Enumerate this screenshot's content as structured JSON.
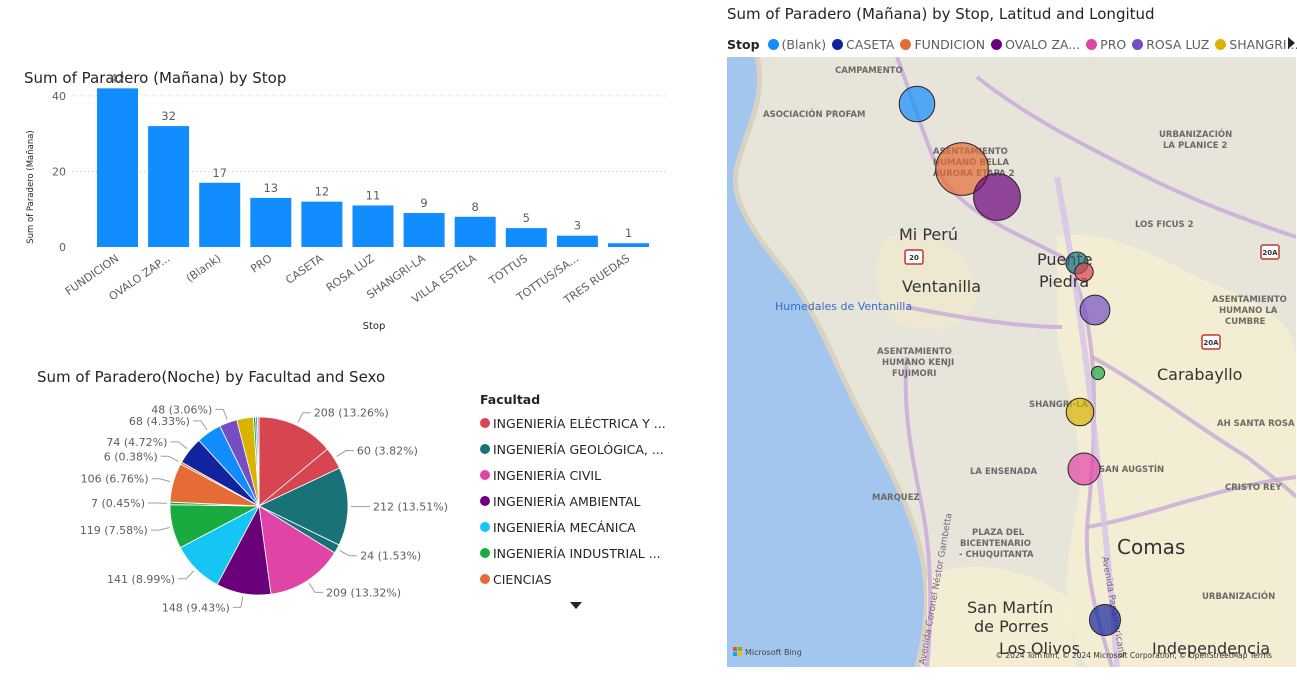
{
  "bar_chart": {
    "title": "Sum of Paradero (Mañana) by Stop"
  },
  "pie_chart": {
    "title": "Sum of Paradero(Noche) by Facultad and Sexo",
    "legend_title": "Facultad",
    "legend_items": [
      {
        "label": "INGENIERÍA ELÉCTRICA Y ...",
        "color": "#D64550"
      },
      {
        "label": "INGENIERÍA GEOLÓGICA, ...",
        "color": "#197278"
      },
      {
        "label": "INGENIERÍA CIVIL",
        "color": "#E044A7"
      },
      {
        "label": "INGENIERÍA AMBIENTAL",
        "color": "#6B007B"
      },
      {
        "label": "INGENIERÍA MECÁNICA",
        "color": "#15C6F4"
      },
      {
        "label": "INGENIERÍA INDUSTRIAL ...",
        "color": "#1AAB40"
      },
      {
        "label": "CIENCIAS",
        "color": "#E66C37"
      }
    ]
  },
  "map": {
    "title": "Sum of Paradero (Mañana) by Stop, Latitud and Longitud",
    "legend_title": "Stop",
    "legend_items": [
      {
        "label": "(Blank)",
        "color": "#118DFF"
      },
      {
        "label": "CASETA",
        "color": "#12239E"
      },
      {
        "label": "FUNDICION",
        "color": "#E66C37"
      },
      {
        "label": "OVALO ZA...",
        "color": "#6B007B"
      },
      {
        "label": "PRO",
        "color": "#E044A7"
      },
      {
        "label": "ROSA LUZ",
        "color": "#744EC2"
      },
      {
        "label": "SHANGRI...",
        "color": "#D9B300"
      }
    ],
    "place_labels": [
      {
        "text": "CAMPAMENTO",
        "kind": "small"
      },
      {
        "text": "ASOCIACIÓN PROFAM",
        "kind": "small"
      },
      {
        "text": "ASENTAMIENTO",
        "kind": "small"
      },
      {
        "text": "HUMANO BELLA",
        "kind": "small"
      },
      {
        "text": "AURORA ETAPA 2",
        "kind": "small"
      },
      {
        "text": "URBANIZACIÓN",
        "kind": "small"
      },
      {
        "text": "LA PLANICE 2",
        "kind": "small"
      },
      {
        "text": "LOS FICUS 2",
        "kind": "small"
      },
      {
        "text": "Mi Perú",
        "kind": "town"
      },
      {
        "text": "Puente",
        "kind": "town"
      },
      {
        "text": "Piedra",
        "kind": "town"
      },
      {
        "text": "Ventanilla",
        "kind": "town"
      },
      {
        "text": "Humedales de Ventanilla",
        "kind": "water"
      },
      {
        "text": "ASENTAMIENTO",
        "kind": "small"
      },
      {
        "text": "HUMANO LA",
        "kind": "small"
      },
      {
        "text": "CUMBRE",
        "kind": "small"
      },
      {
        "text": "ASENTAMIENTO",
        "kind": "small"
      },
      {
        "text": "HUMANO KENJI",
        "kind": "small"
      },
      {
        "text": "FUJIMORI",
        "kind": "small"
      },
      {
        "text": "Carabayllo",
        "kind": "town"
      },
      {
        "text": "SHANGRI-LA",
        "kind": "small"
      },
      {
        "text": "AH SANTA ROSA",
        "kind": "small"
      },
      {
        "text": "LA ENSENADA",
        "kind": "small"
      },
      {
        "text": "SAN AUGSTÍN",
        "kind": "small"
      },
      {
        "text": "CRISTO REY",
        "kind": "small"
      },
      {
        "text": "MARQUEZ",
        "kind": "small"
      },
      {
        "text": "PLAZA DEL",
        "kind": "small"
      },
      {
        "text": "BICENTENARIO",
        "kind": "small"
      },
      {
        "text": "- CHUQUITANTA",
        "kind": "small"
      },
      {
        "text": "Comas",
        "kind": "city"
      },
      {
        "text": "URBANIZACIÓN",
        "kind": "small"
      },
      {
        "text": "San Martín",
        "kind": "town"
      },
      {
        "text": "de Porres",
        "kind": "town"
      },
      {
        "text": "Los Olivos",
        "kind": "town"
      },
      {
        "text": "Independencia",
        "kind": "town"
      },
      {
        "text": "Avenida Coronel Néstor Gambetta",
        "kind": "road"
      },
      {
        "text": "Avenida Panamericana",
        "kind": "road"
      }
    ],
    "route_shields": [
      "20",
      "20A",
      "20A"
    ],
    "credit": "© 2024 TomTom, © 2024 Microsoft Corporation, © OpenStreetMap  Terms",
    "brand": "Microsoft Bing"
  },
  "chart_data": [
    {
      "type": "bar",
      "title": "Sum of Paradero (Mañana) by Stop",
      "xlabel": "Stop",
      "ylabel": "Sum of Paradero (Mañana)",
      "categories": [
        "FUNDICION",
        "OVALO ZAP...",
        "(Blank)",
        "PRO",
        "CASETA",
        "ROSA LUZ",
        "SHANGRI-LA",
        "VILLA ESTELA",
        "TOTTUS",
        "TOTTUS/SA...",
        "TRES RUEDAS"
      ],
      "values": [
        42,
        32,
        17,
        13,
        12,
        11,
        9,
        8,
        5,
        3,
        1
      ],
      "yticks": [
        0,
        20,
        40
      ],
      "ylim": [
        0,
        45
      ],
      "color": "#118DFF",
      "grid": true
    },
    {
      "type": "pie",
      "title": "Sum of Paradero(Noche) by Facultad and Sexo",
      "legend_title": "Facultad",
      "slices": [
        {
          "value": 208,
          "label": "208 (13.26%)",
          "color": "#D64550"
        },
        {
          "value": 60,
          "label": "60 (3.82%)",
          "color": "#D64550"
        },
        {
          "value": 212,
          "label": "212 (13.51%)",
          "color": "#197278"
        },
        {
          "value": 24,
          "label": "24 (1.53%)",
          "color": "#197278"
        },
        {
          "value": 209,
          "label": "209 (13.32%)",
          "color": "#E044A7"
        },
        {
          "value": 148,
          "label": "148 (9.43%)",
          "color": "#6B007B"
        },
        {
          "value": 141,
          "label": "141 (8.99%)",
          "color": "#15C6F4"
        },
        {
          "value": 119,
          "label": "119 (7.58%)",
          "color": "#1AAB40"
        },
        {
          "value": 7,
          "label": "7 (0.45%)",
          "color": "#1AAB40"
        },
        {
          "value": 106,
          "label": "106 (6.76%)",
          "color": "#E66C37"
        },
        {
          "value": 6,
          "label": "6 (0.38%)",
          "color": "#E66C37"
        },
        {
          "value": 74,
          "label": "74 (4.72%)",
          "color": "#12239E"
        },
        {
          "value": 68,
          "label": "68 (4.33%)",
          "color": "#118DFF"
        },
        {
          "value": 48,
          "label": "48 (3.06%)",
          "color": "#744EC2"
        },
        {
          "value": 45,
          "label": "",
          "color": "#D9B300"
        },
        {
          "value": 6,
          "label": "",
          "color": "#1AAB40"
        },
        {
          "value": 5,
          "label": "",
          "color": "#118DFF"
        },
        {
          "value": 4,
          "label": "",
          "color": "#E66C37"
        }
      ]
    },
    {
      "type": "scatter",
      "title": "Sum of Paradero (Mañana) by Stop, Latitud and Longitud",
      "legend_title": "Stop",
      "points": [
        {
          "stop": "(Blank)",
          "value": 17,
          "color": "#118DFF"
        },
        {
          "stop": "FUNDICION",
          "value": 42,
          "color": "#E66C37"
        },
        {
          "stop": "OVALO ZAP...",
          "value": 32,
          "color": "#6B007B"
        },
        {
          "stop": "TOTTUS",
          "value": 5,
          "color": "#197278"
        },
        {
          "stop": "TOTTUS/SA...",
          "value": 3,
          "color": "#D64550"
        },
        {
          "stop": "ROSA LUZ",
          "value": 11,
          "color": "#744EC2"
        },
        {
          "stop": "TRES RUEDAS",
          "value": 1,
          "color": "#1AAB40"
        },
        {
          "stop": "SHANGRI-LA",
          "value": 9,
          "color": "#D9B300"
        },
        {
          "stop": "PRO",
          "value": 13,
          "color": "#E044A7"
        },
        {
          "stop": "CASETA",
          "value": 12,
          "color": "#12239E"
        }
      ]
    }
  ]
}
